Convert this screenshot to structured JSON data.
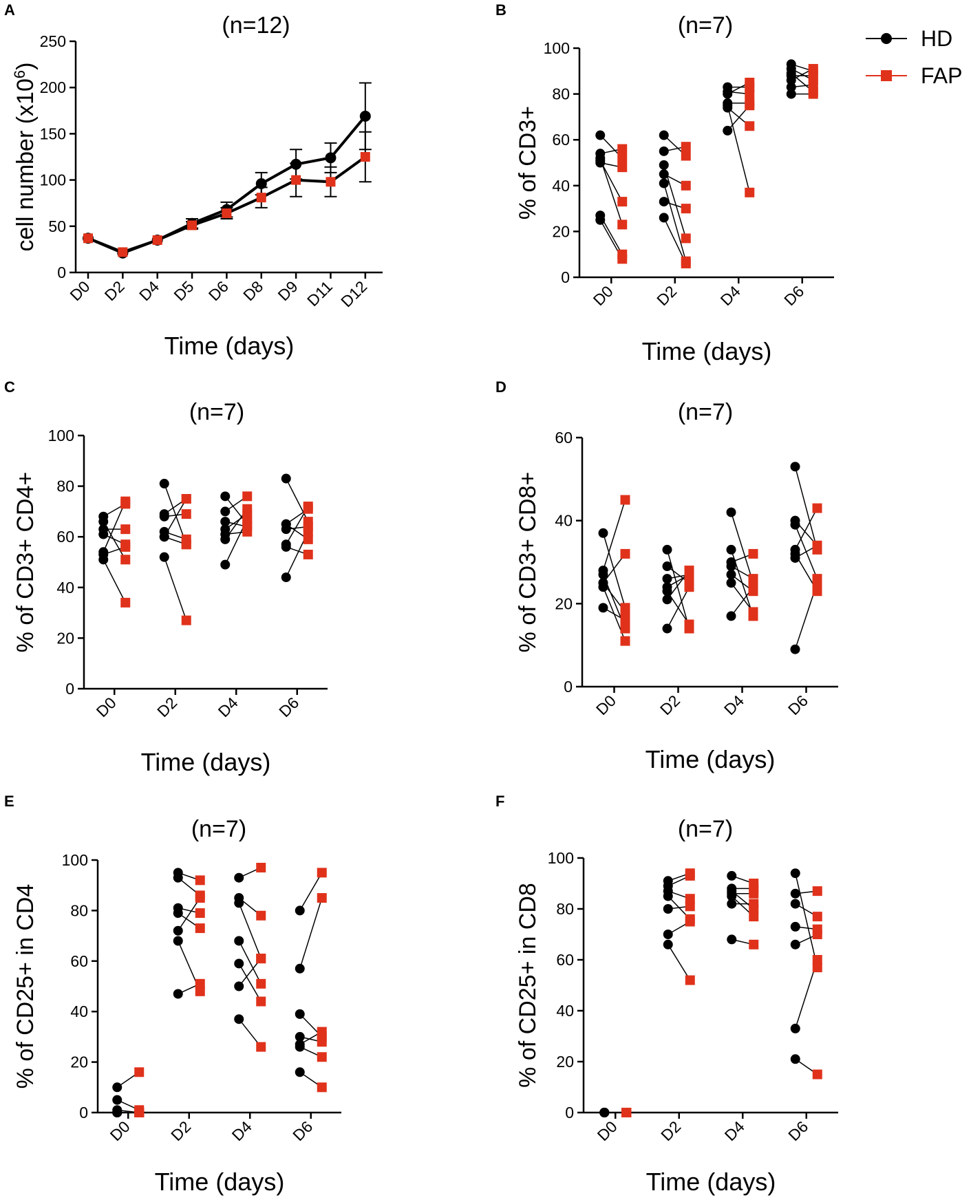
{
  "colors": {
    "hd": "#000000",
    "fap": "#e0321b"
  },
  "legend": {
    "hd": "HD",
    "fap": "FAP"
  },
  "chart_data": [
    {
      "panel": "A",
      "type": "line",
      "title": "(n=12)",
      "xlabel": "Time (days)",
      "ylabel": "cell number (x10",
      "ylabel_sup": "6",
      "ylabel_end": ")",
      "categories": [
        "D0",
        "D2",
        "D4",
        "D5",
        "D6",
        "D8",
        "D9",
        "D11",
        "D12"
      ],
      "ylim": [
        0,
        250
      ],
      "yticks": [
        0,
        50,
        100,
        150,
        200,
        250
      ],
      "series": [
        {
          "name": "HD",
          "values": [
            37,
            21,
            35,
            53,
            68,
            96,
            117,
            124,
            169
          ],
          "err": [
            0,
            0,
            0,
            5,
            8,
            12,
            16,
            16,
            36
          ]
        },
        {
          "name": "FAP",
          "values": [
            37,
            22,
            35,
            51,
            64,
            81,
            100,
            98,
            125
          ],
          "err": [
            0,
            0,
            0,
            4,
            6,
            11,
            18,
            16,
            27
          ]
        }
      ]
    },
    {
      "panel": "B",
      "type": "scatter",
      "title": "(n=7)",
      "xlabel": "Time (days)",
      "ylabel": "% of CD3+",
      "categories": [
        "D0",
        "D2",
        "D4",
        "D6"
      ],
      "ylim": [
        0,
        100
      ],
      "yticks": [
        0,
        20,
        40,
        60,
        80,
        100
      ],
      "pairs": [
        [
          [
            62,
            52
          ],
          [
            54,
            56
          ],
          [
            52,
            23
          ],
          [
            51,
            33
          ],
          [
            50,
            48
          ],
          [
            27,
            10
          ],
          [
            25,
            8
          ]
        ],
        [
          [
            62,
            53
          ],
          [
            55,
            57
          ],
          [
            49,
            17
          ],
          [
            45,
            40
          ],
          [
            41,
            7
          ],
          [
            33,
            30
          ],
          [
            26,
            6
          ]
        ],
        [
          [
            83,
            83
          ],
          [
            81,
            80
          ],
          [
            80,
            85
          ],
          [
            76,
            76
          ],
          [
            75,
            37
          ],
          [
            74,
            66
          ],
          [
            64,
            75
          ]
        ],
        [
          [
            93,
            90
          ],
          [
            91,
            86
          ],
          [
            89,
            81
          ],
          [
            88,
            88
          ],
          [
            86,
            91
          ],
          [
            83,
            84
          ],
          [
            80,
            80
          ]
        ]
      ]
    },
    {
      "panel": "C",
      "type": "scatter",
      "title": "(n=7)",
      "xlabel": "Time (days)",
      "ylabel": "% of CD3+  CD4+",
      "categories": [
        "D0",
        "D2",
        "D4",
        "D6"
      ],
      "ylim": [
        0,
        100
      ],
      "yticks": [
        0,
        20,
        40,
        60,
        80,
        100
      ],
      "pairs": [
        [
          [
            68,
            73
          ],
          [
            66,
            51
          ],
          [
            63,
            63
          ],
          [
            61,
            57
          ],
          [
            54,
            74
          ],
          [
            53,
            56
          ],
          [
            51,
            34
          ]
        ],
        [
          [
            81,
            57
          ],
          [
            69,
            75
          ],
          [
            68,
            69
          ],
          [
            62,
            59
          ],
          [
            60,
            75
          ],
          [
            52,
            27
          ],
          [
            60,
            57
          ]
        ],
        [
          [
            76,
            65
          ],
          [
            70,
            76
          ],
          [
            66,
            64
          ],
          [
            63,
            69
          ],
          [
            61,
            62
          ],
          [
            59,
            71
          ],
          [
            49,
            67
          ]
        ],
        [
          [
            83,
            66
          ],
          [
            65,
            71
          ],
          [
            63,
            64
          ],
          [
            57,
            72
          ],
          [
            56,
            53
          ],
          [
            44,
            62
          ],
          [
            65,
            59
          ]
        ]
      ]
    },
    {
      "panel": "D",
      "type": "scatter",
      "title": "(n=7)",
      "xlabel": "Time (days)",
      "ylabel": "% of CD3+ CD8+",
      "categories": [
        "D0",
        "D2",
        "D4",
        "D6"
      ],
      "ylim": [
        0,
        60
      ],
      "yticks": [
        0,
        20,
        40,
        60
      ],
      "pairs": [
        [
          [
            37,
            19
          ],
          [
            28,
            45
          ],
          [
            27,
            14
          ],
          [
            25,
            18
          ],
          [
            25,
            32
          ],
          [
            24,
            11
          ],
          [
            19,
            16
          ]
        ],
        [
          [
            33,
            14
          ],
          [
            29,
            25
          ],
          [
            26,
            27
          ],
          [
            24,
            27
          ],
          [
            23,
            15
          ],
          [
            21,
            28
          ],
          [
            14,
            24
          ]
        ],
        [
          [
            42,
            25
          ],
          [
            33,
            17
          ],
          [
            30,
            32
          ],
          [
            29,
            26
          ],
          [
            27,
            23
          ],
          [
            25,
            18
          ],
          [
            17,
            24
          ]
        ],
        [
          [
            53,
            33
          ],
          [
            40,
            34
          ],
          [
            39,
            26
          ],
          [
            33,
            43
          ],
          [
            32,
            23
          ],
          [
            31,
            34
          ],
          [
            9,
            25
          ]
        ]
      ]
    },
    {
      "panel": "E",
      "type": "scatter",
      "title": "(n=7)",
      "xlabel": "Time (days)",
      "ylabel": "% of CD25+ in CD4",
      "categories": [
        "D0",
        "D2",
        "D4",
        "D6"
      ],
      "ylim": [
        0,
        100
      ],
      "yticks": [
        0,
        20,
        40,
        60,
        80,
        100
      ],
      "pairs": [
        [
          [
            10,
            16
          ],
          [
            5,
            1
          ],
          [
            1,
            0
          ],
          [
            0,
            0
          ],
          [
            0,
            0
          ],
          [
            0,
            0
          ],
          [
            0,
            0
          ]
        ],
        [
          [
            95,
            92
          ],
          [
            93,
            86
          ],
          [
            81,
            79
          ],
          [
            79,
            73
          ],
          [
            72,
            85
          ],
          [
            68,
            48
          ],
          [
            47,
            51
          ]
        ],
        [
          [
            93,
            97
          ],
          [
            85,
            78
          ],
          [
            83,
            61
          ],
          [
            68,
            51
          ],
          [
            59,
            44
          ],
          [
            50,
            61
          ],
          [
            37,
            26
          ]
        ],
        [
          [
            80,
            95
          ],
          [
            57,
            85
          ],
          [
            39,
            30
          ],
          [
            30,
            28
          ],
          [
            27,
            32
          ],
          [
            26,
            22
          ],
          [
            16,
            10
          ]
        ]
      ]
    },
    {
      "panel": "F",
      "type": "scatter",
      "title": "(n=7)",
      "xlabel": "Time (days)",
      "ylabel": "% of CD25+ in CD8",
      "categories": [
        "D0",
        "D2",
        "D4",
        "D6"
      ],
      "ylim": [
        0,
        100
      ],
      "yticks": [
        0,
        20,
        40,
        60,
        80,
        100
      ],
      "pairs": [
        [
          [
            0,
            0
          ],
          [
            0,
            0
          ],
          [
            0,
            0
          ],
          [
            0,
            0
          ],
          [
            0,
            0
          ],
          [
            0,
            0
          ],
          [
            0,
            0
          ]
        ],
        [
          [
            91,
            94
          ],
          [
            89,
            93
          ],
          [
            87,
            84
          ],
          [
            85,
            76
          ],
          [
            80,
            81
          ],
          [
            70,
            75
          ],
          [
            66,
            52
          ]
        ],
        [
          [
            93,
            90
          ],
          [
            88,
            88
          ],
          [
            87,
            80
          ],
          [
            86,
            86
          ],
          [
            85,
            77
          ],
          [
            82,
            82
          ],
          [
            68,
            66
          ]
        ],
        [
          [
            94,
            57
          ],
          [
            86,
            87
          ],
          [
            82,
            77
          ],
          [
            73,
            72
          ],
          [
            66,
            70
          ],
          [
            33,
            60
          ],
          [
            21,
            15
          ]
        ]
      ]
    }
  ]
}
